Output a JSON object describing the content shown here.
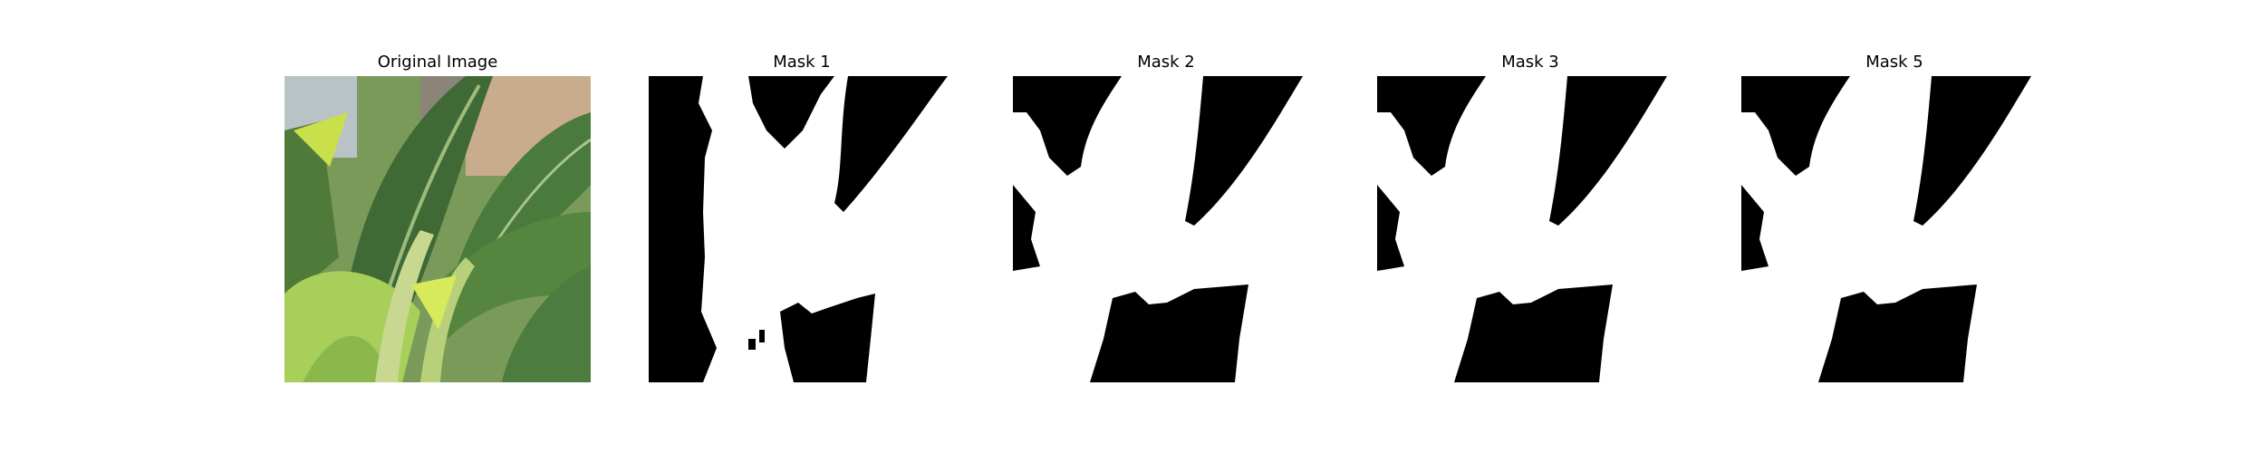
{
  "figure": {
    "panels": [
      {
        "title": "Original Image",
        "image": "leafy-plant-photo"
      },
      {
        "title": "Mask 1",
        "image": "binary-mask"
      },
      {
        "title": "Mask 2",
        "image": "binary-mask"
      },
      {
        "title": "Mask 3",
        "image": "binary-mask"
      },
      {
        "title": "Mask 5",
        "image": "binary-mask"
      }
    ]
  },
  "colors": {
    "background": "#ffffff",
    "mask_foreground": "#ffffff",
    "mask_background": "#000000",
    "leaf_dark": "#3f6a35",
    "leaf_mid": "#5f8a45",
    "leaf_light": "#a7cf5a",
    "sky": "#b9c2c4",
    "wood": "#c9ab8e"
  }
}
